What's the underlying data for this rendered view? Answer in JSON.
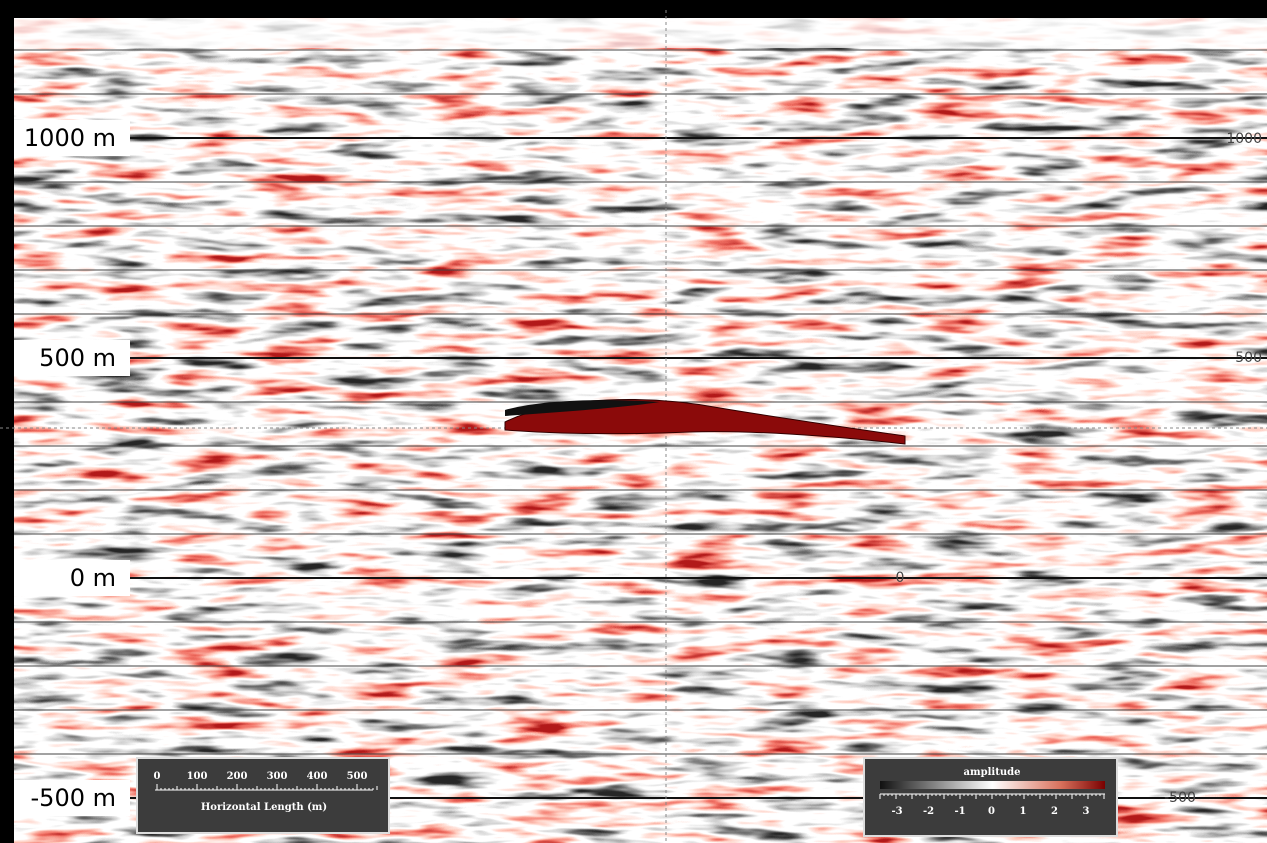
{
  "depth_labels": {
    "left": [
      "1000 m",
      "500 m",
      "0 m",
      "-500 m"
    ],
    "right": [
      "1000",
      "500",
      "0",
      "-500"
    ]
  },
  "scale_bar": {
    "ticks": [
      "0",
      "100",
      "200",
      "300",
      "400",
      "500"
    ],
    "title": "Horizontal Length (m)"
  },
  "color_bar": {
    "title": "amplitude",
    "ticks": [
      "-3",
      "-2",
      "-1",
      "0",
      "1",
      "2",
      "3"
    ]
  }
}
